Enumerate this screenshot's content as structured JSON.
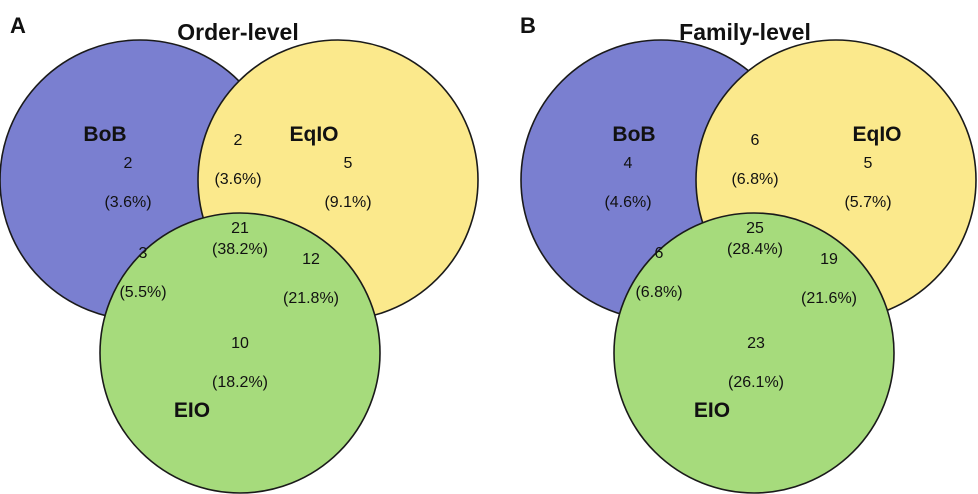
{
  "colors": {
    "bob": "#7a7fd0",
    "eqio": "#fbe98c",
    "eio": "#a6db7c",
    "outline": "#1a1a1a"
  },
  "panels": [
    {
      "letter": "A",
      "title": "Order-level",
      "sets": {
        "bob": "BoB",
        "eqio": "EqIO",
        "eio": "EIO"
      },
      "regions": {
        "bob_only": {
          "count": "2",
          "percent": "(3.6%)"
        },
        "bob_eqio": {
          "count": "2",
          "percent": "(3.6%)"
        },
        "eqio_only": {
          "count": "5",
          "percent": "(9.1%)"
        },
        "all": {
          "count": "21",
          "percent": "(38.2%)"
        },
        "bob_eio": {
          "count": "3",
          "percent": "(5.5%)"
        },
        "eqio_eio": {
          "count": "12",
          "percent": "(21.8%)"
        },
        "eio_only": {
          "count": "10",
          "percent": "(18.2%)"
        }
      }
    },
    {
      "letter": "B",
      "title": "Family-level",
      "sets": {
        "bob": "BoB",
        "eqio": "EqIO",
        "eio": "EIO"
      },
      "regions": {
        "bob_only": {
          "count": "4",
          "percent": "(4.6%)"
        },
        "bob_eqio": {
          "count": "6",
          "percent": "(6.8%)"
        },
        "eqio_only": {
          "count": "5",
          "percent": "(5.7%)"
        },
        "all": {
          "count": "25",
          "percent": "(28.4%)"
        },
        "bob_eio": {
          "count": "6",
          "percent": "(6.8%)"
        },
        "eqio_eio": {
          "count": "19",
          "percent": "(21.6%)"
        },
        "eio_only": {
          "count": "23",
          "percent": "(26.1%)"
        }
      }
    }
  ]
}
